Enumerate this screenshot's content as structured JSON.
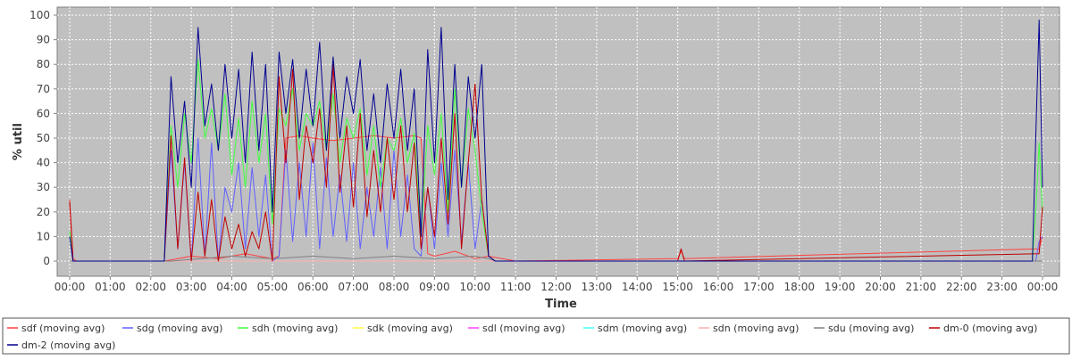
{
  "chart_data": {
    "type": "line",
    "title": "",
    "xlabel": "Time",
    "ylabel": "% util",
    "ylim": [
      0,
      100
    ],
    "xlim": [
      "00:00",
      "24:00"
    ],
    "grid": true,
    "legend_position": "bottom",
    "background_color": "#c0c0c0",
    "gridline_color": "#ffffff",
    "x_ticks": [
      "00:00",
      "01:00",
      "02:00",
      "03:00",
      "04:00",
      "05:00",
      "06:00",
      "07:00",
      "08:00",
      "09:00",
      "10:00",
      "11:00",
      "12:00",
      "13:00",
      "14:00",
      "15:00",
      "16:00",
      "17:00",
      "18:00",
      "19:00",
      "20:00",
      "21:00",
      "22:00",
      "23:00",
      "00:00"
    ],
    "y_ticks": [
      0,
      10,
      20,
      30,
      40,
      50,
      60,
      70,
      80,
      90,
      100
    ],
    "series": [
      {
        "name": "sdf (moving avg)",
        "color": "#ff4040",
        "x": [
          "00:00",
          "00:05",
          "00:10",
          "02:20",
          "03:00",
          "03:40",
          "04:20",
          "05:00",
          "05:10",
          "05:20",
          "05:40",
          "06:00",
          "06:30",
          "07:00",
          "07:30",
          "08:00",
          "08:30",
          "08:40",
          "08:50",
          "09:00",
          "09:30",
          "10:00",
          "10:20",
          "11:00",
          "15:00",
          "15:05",
          "15:10",
          "23:55",
          "24:00"
        ],
        "y": [
          25,
          1,
          0,
          0,
          2,
          1,
          3,
          1,
          2,
          50,
          51,
          50,
          49,
          50,
          51,
          50,
          51,
          50,
          3,
          2,
          4,
          1,
          2,
          0,
          1,
          4,
          1,
          5,
          10
        ]
      },
      {
        "name": "sdg (moving avg)",
        "color": "#6060ff",
        "x": [
          "00:00",
          "00:05",
          "00:10",
          "02:20",
          "02:30",
          "02:40",
          "02:50",
          "03:00",
          "03:10",
          "03:20",
          "03:30",
          "03:40",
          "03:50",
          "04:00",
          "04:10",
          "04:20",
          "04:30",
          "04:40",
          "04:50",
          "05:00",
          "05:10",
          "05:20",
          "05:30",
          "05:40",
          "05:50",
          "06:00",
          "06:10",
          "06:20",
          "06:30",
          "06:40",
          "06:50",
          "07:00",
          "07:10",
          "07:20",
          "07:30",
          "07:40",
          "07:50",
          "08:00",
          "08:10",
          "08:20",
          "08:30",
          "08:40",
          "08:50",
          "09:00",
          "09:10",
          "09:20",
          "09:30",
          "09:40",
          "09:50",
          "10:00",
          "10:10",
          "10:20",
          "10:30",
          "11:00",
          "23:50",
          "23:55",
          "24:00"
        ],
        "y": [
          10,
          0,
          0,
          0,
          45,
          5,
          40,
          0,
          50,
          2,
          48,
          0,
          30,
          20,
          40,
          5,
          38,
          10,
          35,
          0,
          2,
          45,
          8,
          40,
          10,
          48,
          5,
          42,
          10,
          35,
          8,
          40,
          5,
          30,
          10,
          38,
          5,
          45,
          10,
          35,
          5,
          2,
          30,
          5,
          40,
          10,
          45,
          8,
          40,
          5,
          25,
          2,
          0,
          0,
          0,
          8,
          10
        ]
      },
      {
        "name": "sdh (moving avg)",
        "color": "#40ff40",
        "x": [
          "00:00",
          "00:05",
          "00:10",
          "02:20",
          "02:30",
          "02:40",
          "02:50",
          "03:00",
          "03:10",
          "03:20",
          "03:30",
          "03:40",
          "03:50",
          "04:00",
          "04:10",
          "04:20",
          "04:30",
          "04:40",
          "04:50",
          "05:00",
          "05:10",
          "05:20",
          "05:30",
          "05:40",
          "05:50",
          "06:00",
          "06:10",
          "06:20",
          "06:30",
          "06:40",
          "06:50",
          "07:00",
          "07:10",
          "07:20",
          "07:30",
          "07:40",
          "07:50",
          "08:00",
          "08:10",
          "08:20",
          "08:30",
          "08:40",
          "08:50",
          "09:00",
          "09:10",
          "09:20",
          "09:30",
          "09:40",
          "09:50",
          "10:00",
          "10:10",
          "10:20",
          "10:30",
          "11:00",
          "23:45",
          "23:50",
          "23:55",
          "24:00"
        ],
        "y": [
          12,
          0,
          0,
          0,
          55,
          30,
          60,
          40,
          82,
          50,
          62,
          45,
          68,
          35,
          58,
          30,
          65,
          40,
          60,
          15,
          62,
          55,
          70,
          45,
          60,
          55,
          65,
          45,
          68,
          40,
          58,
          50,
          62,
          35,
          55,
          30,
          50,
          45,
          58,
          40,
          52,
          10,
          55,
          35,
          60,
          20,
          70,
          30,
          62,
          45,
          20,
          2,
          0,
          0,
          0,
          20,
          48,
          20
        ]
      },
      {
        "name": "sdk (moving avg)",
        "color": "#ffff40",
        "x": [
          "00:00",
          "24:00"
        ],
        "y": [
          0,
          0
        ]
      },
      {
        "name": "sdl (moving avg)",
        "color": "#ff40ff",
        "x": [
          "00:00",
          "24:00"
        ],
        "y": [
          0,
          0
        ]
      },
      {
        "name": "sdm (moving avg)",
        "color": "#40ffff",
        "x": [
          "00:00",
          "24:00"
        ],
        "y": [
          0,
          0
        ]
      },
      {
        "name": "sdn (moving avg)",
        "color": "#ffafaf",
        "x": [
          "00:00",
          "24:00"
        ],
        "y": [
          0,
          0
        ]
      },
      {
        "name": "sdu (moving avg)",
        "color": "#808080",
        "x": [
          "00:00",
          "02:30",
          "04:00",
          "05:00",
          "06:00",
          "07:00",
          "08:00",
          "09:00",
          "10:00",
          "10:20",
          "10:30",
          "24:00"
        ],
        "y": [
          0,
          0,
          2,
          1,
          2,
          1,
          2,
          1,
          2,
          1,
          0,
          0
        ]
      },
      {
        "name": "dm-0 (moving avg)",
        "color": "#c00000",
        "x": [
          "00:00",
          "00:05",
          "00:10",
          "02:20",
          "02:30",
          "02:40",
          "02:50",
          "03:00",
          "03:10",
          "03:20",
          "03:30",
          "03:40",
          "03:50",
          "04:00",
          "04:10",
          "04:20",
          "04:30",
          "04:40",
          "04:50",
          "05:00",
          "05:10",
          "05:20",
          "05:30",
          "05:40",
          "05:50",
          "06:00",
          "06:10",
          "06:20",
          "06:30",
          "06:40",
          "06:50",
          "07:00",
          "07:10",
          "07:20",
          "07:30",
          "07:40",
          "07:50",
          "08:00",
          "08:10",
          "08:20",
          "08:30",
          "08:40",
          "08:50",
          "09:00",
          "09:10",
          "09:20",
          "09:30",
          "09:40",
          "09:50",
          "10:00",
          "10:10",
          "10:20",
          "10:30",
          "11:00",
          "15:00",
          "15:05",
          "15:10",
          "23:55",
          "24:00"
        ],
        "y": [
          24,
          0,
          0,
          0,
          51,
          5,
          42,
          0,
          28,
          2,
          25,
          0,
          18,
          5,
          15,
          2,
          12,
          5,
          20,
          0,
          75,
          40,
          78,
          25,
          55,
          40,
          62,
          30,
          80,
          28,
          55,
          22,
          60,
          18,
          45,
          20,
          50,
          25,
          55,
          20,
          48,
          5,
          30,
          10,
          50,
          15,
          60,
          5,
          40,
          72,
          25,
          2,
          0,
          0,
          0,
          5,
          0,
          3,
          22
        ]
      },
      {
        "name": "dm-2 (moving avg)",
        "color": "#000090",
        "x": [
          "00:00",
          "00:05",
          "00:10",
          "02:20",
          "02:30",
          "02:40",
          "02:50",
          "03:00",
          "03:10",
          "03:20",
          "03:30",
          "03:40",
          "03:50",
          "04:00",
          "04:10",
          "04:20",
          "04:30",
          "04:40",
          "04:50",
          "05:00",
          "05:10",
          "05:20",
          "05:30",
          "05:40",
          "05:50",
          "06:00",
          "06:10",
          "06:20",
          "06:30",
          "06:40",
          "06:50",
          "07:00",
          "07:10",
          "07:20",
          "07:30",
          "07:40",
          "07:50",
          "08:00",
          "08:10",
          "08:20",
          "08:30",
          "08:40",
          "08:50",
          "09:00",
          "09:10",
          "09:20",
          "09:30",
          "09:40",
          "09:50",
          "10:00",
          "10:10",
          "10:20",
          "10:30",
          "11:00",
          "23:45",
          "23:50",
          "23:55",
          "24:00"
        ],
        "y": [
          10,
          0,
          0,
          0,
          75,
          40,
          65,
          30,
          95,
          55,
          72,
          45,
          80,
          50,
          78,
          40,
          85,
          45,
          80,
          20,
          85,
          60,
          82,
          50,
          78,
          55,
          89,
          45,
          83,
          50,
          75,
          60,
          82,
          45,
          68,
          40,
          72,
          50,
          78,
          45,
          70,
          10,
          86,
          40,
          95,
          25,
          80,
          30,
          75,
          50,
          80,
          2,
          0,
          0,
          0,
          50,
          98,
          30
        ]
      }
    ]
  }
}
